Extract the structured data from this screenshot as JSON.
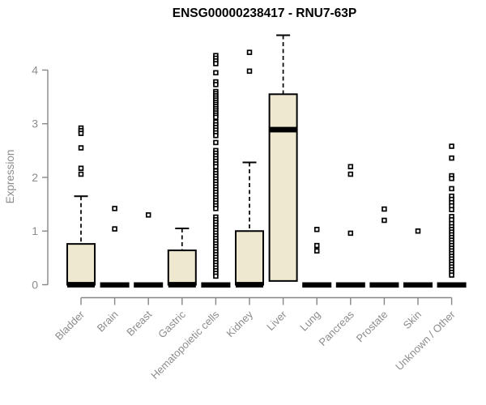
{
  "chart_data": {
    "type": "boxplot",
    "title": "ENSG00000238417 - RNU7-63P",
    "ylabel": "Expression",
    "yticks": [
      0,
      1,
      2,
      3,
      4
    ],
    "ylim": [
      0,
      4.8
    ],
    "grid": false,
    "legend": "none",
    "colors": {
      "box_fill": "#EDE8CF",
      "box_border": "#000000",
      "median": "#000000",
      "outlier": "#000000",
      "axis": "#878787",
      "tick_label": "#8c8c8c",
      "title": "#000000",
      "background": "#ffffff"
    },
    "categories": [
      "Bladder",
      "Brain",
      "Breast",
      "Gastric",
      "Hematopoietic cells",
      "Kidney",
      "Liver",
      "Lung",
      "Pancreas",
      "Prostate",
      "Skin",
      "Unknown / Other"
    ],
    "boxes": [
      {
        "category": "Bladder",
        "q1": 0,
        "median": 0,
        "q3": 0.76,
        "whisker_low": 0,
        "whisker_high": 1.65,
        "outliers": [
          2.92,
          2.87,
          2.82,
          2.55,
          2.17,
          2.06
        ]
      },
      {
        "category": "Brain",
        "q1": 0,
        "median": 0,
        "q3": 0,
        "whisker_low": 0,
        "whisker_high": 0,
        "outliers": [
          1.42,
          1.04
        ]
      },
      {
        "category": "Breast",
        "q1": 0,
        "median": 0,
        "q3": 0,
        "whisker_low": 0,
        "whisker_high": 0,
        "outliers": [
          1.3
        ]
      },
      {
        "category": "Gastric",
        "q1": 0,
        "median": 0,
        "q3": 0.64,
        "whisker_low": 0,
        "whisker_high": 1.05,
        "outliers": []
      },
      {
        "category": "Hematopoietic cells",
        "q1": 0,
        "median": 0,
        "q3": 0,
        "whisker_low": 0,
        "whisker_high": 0,
        "outliers": [
          4.27,
          4.22,
          4.17,
          4.12,
          3.95,
          3.78,
          3.73,
          3.6,
          3.56,
          3.52,
          3.48,
          3.44,
          3.4,
          3.36,
          3.32,
          3.28,
          3.24,
          3.2,
          3.16,
          3.12,
          3.03,
          2.98,
          2.93,
          2.88,
          2.83,
          2.78,
          2.65,
          2.5,
          2.45,
          2.4,
          2.35,
          2.3,
          2.25,
          2.2,
          2.12,
          2.07,
          2.02,
          1.97,
          1.92,
          1.87,
          1.82,
          1.77,
          1.72,
          1.67,
          1.62,
          1.57,
          1.52,
          1.47,
          1.42,
          1.26,
          1.21,
          1.16,
          1.11,
          1.06,
          1.01,
          0.96,
          0.91,
          0.86,
          0.81,
          0.76,
          0.71,
          0.66,
          0.61,
          0.56,
          0.51,
          0.46,
          0.41,
          0.36,
          0.31,
          0.26,
          0.21,
          0.16
        ]
      },
      {
        "category": "Kidney",
        "q1": 0,
        "median": 0,
        "q3": 1.0,
        "whisker_low": 0,
        "whisker_high": 2.28,
        "outliers": [
          4.33,
          3.98
        ]
      },
      {
        "category": "Liver",
        "q1": 0.07,
        "median": 2.89,
        "q3": 3.55,
        "whisker_low": 0.07,
        "whisker_high": 4.65,
        "outliers": []
      },
      {
        "category": "Lung",
        "q1": 0,
        "median": 0,
        "q3": 0,
        "whisker_low": 0,
        "whisker_high": 0,
        "outliers": [
          1.03,
          0.73,
          0.63
        ]
      },
      {
        "category": "Pancreas",
        "q1": 0,
        "median": 0,
        "q3": 0,
        "whisker_low": 0,
        "whisker_high": 0,
        "outliers": [
          2.2,
          2.06,
          0.96
        ]
      },
      {
        "category": "Prostate",
        "q1": 0,
        "median": 0,
        "q3": 0,
        "whisker_low": 0,
        "whisker_high": 0,
        "outliers": [
          1.41,
          1.2
        ]
      },
      {
        "category": "Skin",
        "q1": 0,
        "median": 0,
        "q3": 0,
        "whisker_low": 0,
        "whisker_high": 0,
        "outliers": [
          1.0
        ]
      },
      {
        "category": "Unknown / Other",
        "q1": 0,
        "median": 0,
        "q3": 0,
        "whisker_low": 0,
        "whisker_high": 0,
        "outliers": [
          2.58,
          2.36,
          2.03,
          1.98,
          1.79,
          1.65,
          1.59,
          1.53,
          1.47,
          1.4,
          1.27,
          1.21,
          1.14,
          1.08,
          1.03,
          0.98,
          0.93,
          0.88,
          0.83,
          0.78,
          0.73,
          0.68,
          0.63,
          0.58,
          0.53,
          0.48,
          0.43,
          0.38,
          0.33,
          0.28,
          0.23,
          0.18
        ]
      }
    ]
  }
}
